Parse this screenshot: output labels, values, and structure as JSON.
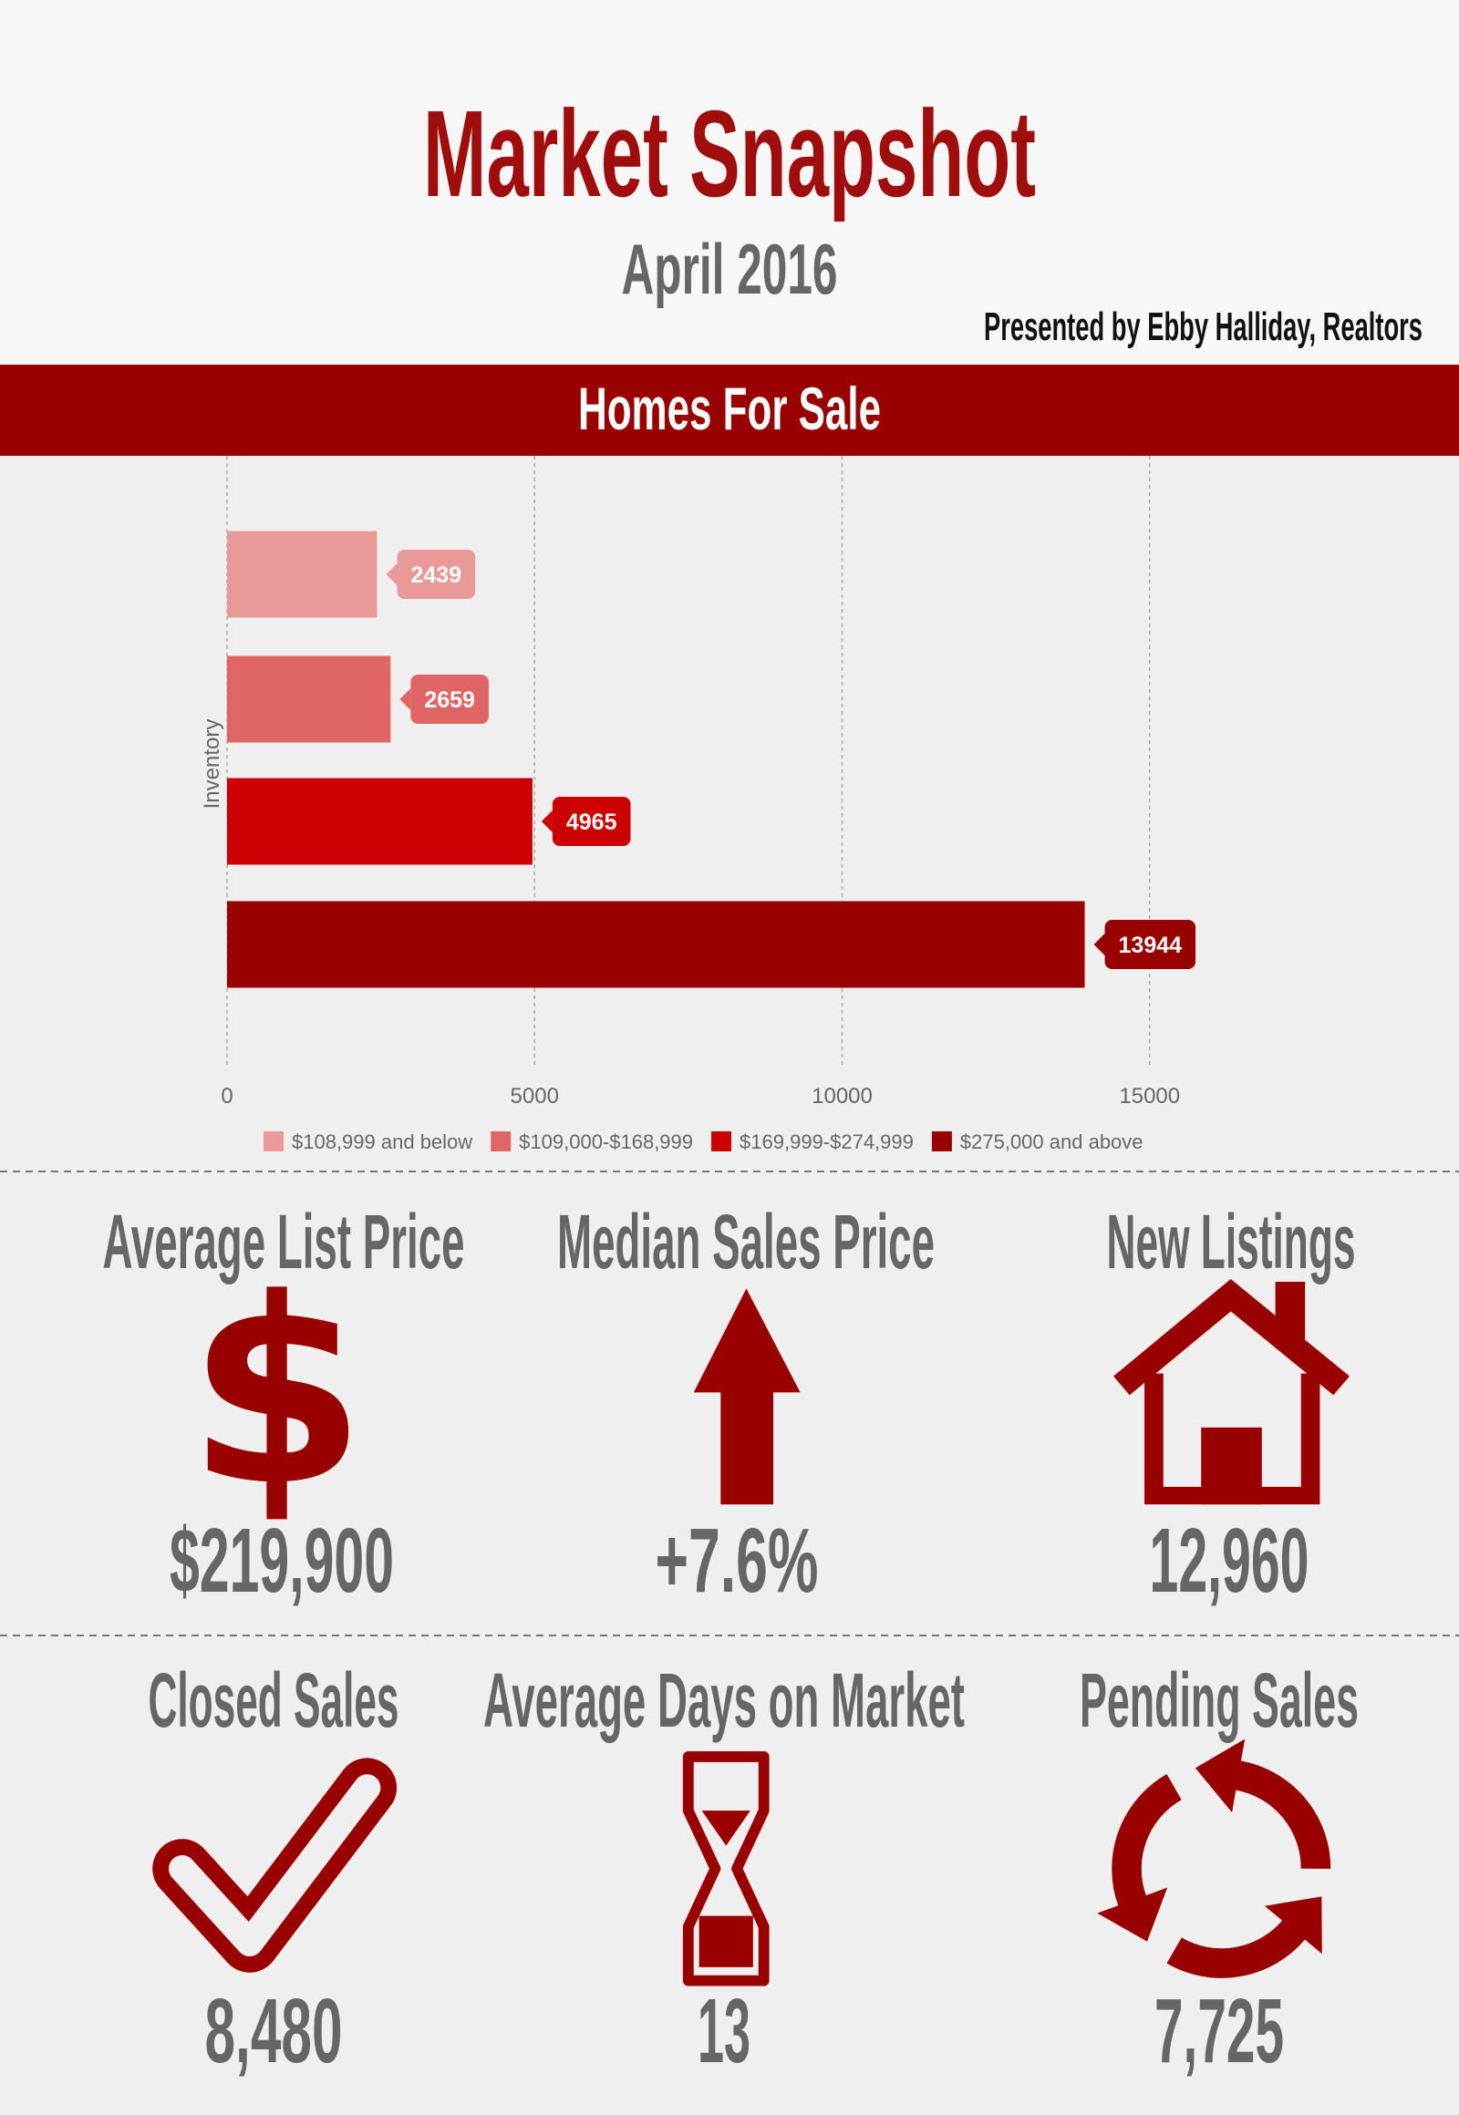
{
  "header": {
    "title": "Market Snapshot",
    "subtitle": "April 2016",
    "presenter": "Presented by Ebby Halliday, Realtors"
  },
  "section_title": "Homes For Sale",
  "chart_data": {
    "type": "bar",
    "orientation": "horizontal",
    "y_label": "Inventory",
    "categories": [
      null
    ],
    "series": [
      {
        "name": "$108,999 and below",
        "color": "#ea9999",
        "values": [
          2439
        ]
      },
      {
        "name": "$109,000-$168,999",
        "color": "#e06666",
        "values": [
          2659
        ]
      },
      {
        "name": "$169,999-$274,999",
        "color": "#cc0000",
        "values": [
          4965
        ]
      },
      {
        "name": "$275,000 and above",
        "color": "#990000",
        "values": [
          13944
        ]
      }
    ],
    "xlim": [
      0,
      20000
    ],
    "xticks": [
      0,
      5000,
      10000,
      15000
    ],
    "grid": true,
    "legend": "bottom"
  },
  "stats": [
    {
      "title": "Average List Price",
      "value": "$219,900"
    },
    {
      "title": "Median Sales Price",
      "value": "+7.6%"
    },
    {
      "title": "New Listings",
      "value": "12,960"
    },
    {
      "title": "Closed Sales",
      "value": "8,480"
    },
    {
      "title": "Average Days on Market",
      "value": "13"
    },
    {
      "title": "Pending Sales",
      "value": "7,725"
    }
  ]
}
